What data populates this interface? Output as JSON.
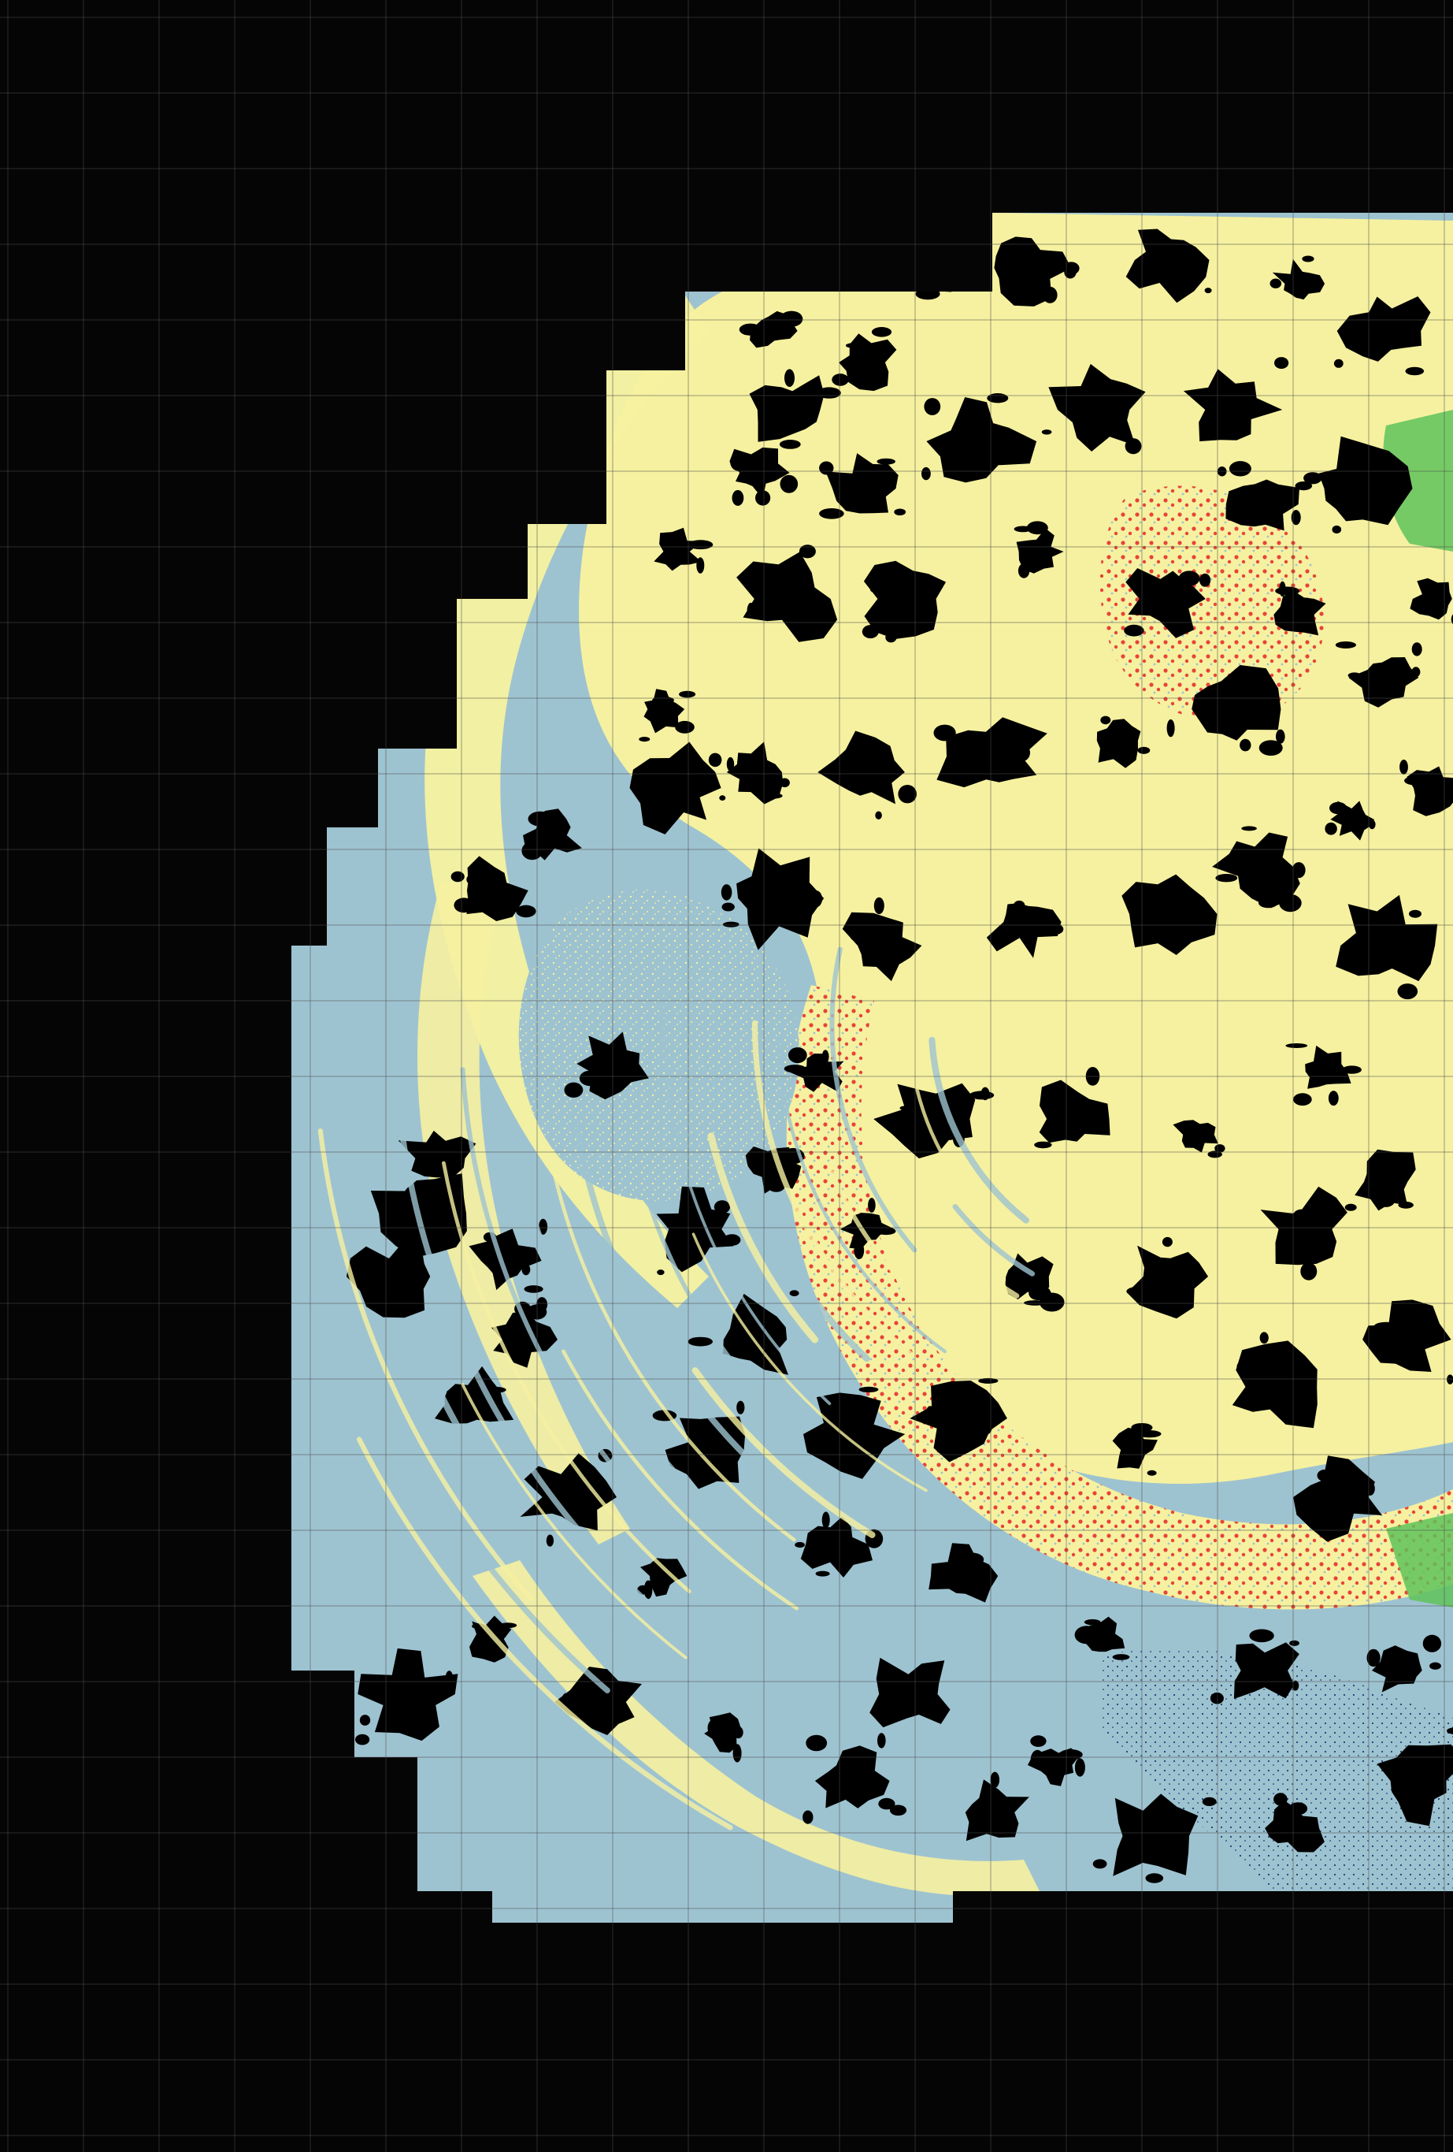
{
  "map": {
    "kind": "classified raster mosaic",
    "colors": {
      "background": "#050505",
      "grid": "#4d4d4d",
      "no_data": "#000000",
      "class_light_blue": "#9ec3d0",
      "class_yellow": "#f6f1a0",
      "class_red": "#e8433a",
      "class_green": "#5fc35a",
      "class_dark_blue": "#1f3d78"
    },
    "classes": [
      {
        "id": "light-blue",
        "color": "#9ec3d0"
      },
      {
        "id": "yellow",
        "color": "#f6f1a0"
      },
      {
        "id": "red",
        "color": "#e8433a"
      },
      {
        "id": "green",
        "color": "#5fc35a"
      },
      {
        "id": "dark-blue",
        "color": "#1f3d78"
      }
    ],
    "grid_visible": true,
    "labels": []
  }
}
